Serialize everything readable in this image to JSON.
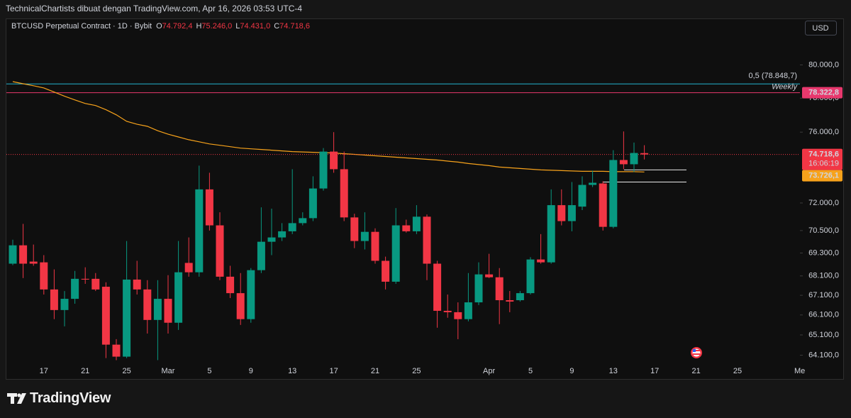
{
  "header": {
    "caption": "TechnicalChartists dibuat dengan TradingView.com, Apr 16, 2026 03:53 UTC-4",
    "brand": "TradingView"
  },
  "chart_data": {
    "type": "candlestick",
    "title": "BTCUSD Perpetual Contract · 1D · Bybit",
    "ohlc_legend": [
      {
        "prefix": "O",
        "value": "74.792,4"
      },
      {
        "prefix": "H",
        "value": "75.246,0"
      },
      {
        "prefix": "L",
        "value": "74.431,0"
      },
      {
        "prefix": "C",
        "value": "74.718,6"
      }
    ],
    "currency": "USD",
    "categories": [
      null,
      null,
      null,
      "17",
      null,
      null,
      null,
      "21",
      null,
      null,
      null,
      "25",
      null,
      null,
      null,
      "Mar",
      null,
      null,
      null,
      "5",
      null,
      null,
      null,
      "9",
      null,
      null,
      null,
      "13",
      null,
      null,
      null,
      "17",
      null,
      null,
      null,
      "21",
      null,
      null,
      null,
      "25",
      null,
      null,
      null,
      null,
      null,
      null,
      "Apr",
      null,
      null,
      null,
      "5",
      null,
      null,
      null,
      "9",
      null,
      null,
      null,
      "13",
      null,
      null,
      null,
      "17",
      null,
      null,
      null,
      "21",
      null,
      null,
      null,
      "25",
      null,
      null,
      null,
      null,
      null,
      "Me"
    ],
    "open": [
      68740,
      69710,
      68850,
      68810,
      67400,
      66350,
      66920,
      67950,
      67950,
      67540,
      64620,
      64030,
      67910,
      67400,
      65850,
      66920,
      65710,
      68780,
      68290,
      72750,
      70780,
      68060,
      67210,
      65890,
      68400,
      69900,
      70130,
      70460,
      70900,
      71170,
      72800,
      74880,
      73880,
      71210,
      69940,
      70430,
      68890,
      67800,
      70780,
      70460,
      71250,
      68740,
      66310,
      66240,
      65890,
      66740,
      68180,
      68030,
      66850,
      66850,
      67210,
      68960,
      68810,
      71880,
      71010,
      71800,
      73000,
      73080,
      70700,
      74400,
      74160,
      74792.4,
      null,
      null,
      null,
      null,
      null,
      null,
      null,
      null,
      null,
      null,
      null,
      null,
      null,
      null,
      null
    ],
    "high": [
      70010,
      70860,
      69750,
      69190,
      68440,
      67320,
      68360,
      68550,
      68250,
      67770,
      64890,
      69940,
      68890,
      67880,
      67880,
      68140,
      69940,
      70130,
      74080,
      73680,
      71490,
      68630,
      68250,
      68510,
      71760,
      71690,
      70900,
      73880,
      71490,
      73480,
      75080,
      76000,
      74880,
      71410,
      71490,
      70620,
      69110,
      71720,
      71090,
      71880,
      71370,
      68890,
      67140,
      66740,
      68250,
      68810,
      69260,
      68510,
      67320,
      67320,
      69080,
      70310,
      72750,
      72750,
      73160,
      73480,
      73800,
      73200,
      74960,
      76040,
      75400,
      75246,
      null,
      null,
      null,
      null,
      null,
      null,
      null,
      null,
      null,
      null,
      null,
      null,
      null,
      null,
      null
    ],
    "low": [
      68660,
      67990,
      68630,
      67140,
      65890,
      65530,
      66670,
      67690,
      67320,
      63960,
      63860,
      63960,
      67140,
      65170,
      63860,
      65170,
      65350,
      68060,
      68060,
      70500,
      67880,
      66960,
      65600,
      65710,
      68250,
      69190,
      69940,
      70310,
      70780,
      71010,
      72680,
      73680,
      71010,
      69560,
      69490,
      68740,
      67400,
      67690,
      70390,
      70310,
      67880,
      65460,
      65960,
      64890,
      65780,
      66600,
      67990,
      65640,
      66240,
      66780,
      67140,
      68740,
      68740,
      70780,
      70460,
      71610,
      72880,
      70500,
      70620,
      73880,
      73720,
      74431,
      null,
      null,
      null,
      null,
      null,
      null,
      null,
      null,
      null,
      null,
      null,
      null,
      null,
      null,
      null
    ],
    "close": [
      69710,
      68740,
      68740,
      67400,
      66350,
      66920,
      67950,
      67910,
      67400,
      64620,
      64030,
      67910,
      67400,
      65850,
      66920,
      65710,
      68290,
      68290,
      72750,
      70780,
      68060,
      67210,
      65890,
      68400,
      69900,
      70130,
      70460,
      70900,
      71170,
      72800,
      74880,
      73880,
      71210,
      69940,
      70430,
      68890,
      67800,
      70780,
      70460,
      71250,
      68740,
      66310,
      66240,
      65890,
      66740,
      68180,
      68030,
      66850,
      66780,
      67210,
      68960,
      68810,
      71880,
      71010,
      71880,
      73000,
      73120,
      70700,
      74400,
      74160,
      74800,
      74718.6,
      null,
      null,
      null,
      null,
      null,
      null,
      null,
      null,
      null,
      null,
      null,
      null,
      null,
      null,
      null
    ],
    "up_color": "#089981",
    "down_color": "#f23645",
    "last_price_label": "74.718,6",
    "countdown": "16:06:19",
    "moving_average": {
      "color": "#f7a21b",
      "price_label": "73.726,1",
      "values": [
        78990,
        78860,
        78740,
        78610,
        78360,
        78110,
        77890,
        77680,
        77560,
        77310,
        77010,
        76630,
        76460,
        76340,
        76080,
        75880,
        75720,
        75560,
        75440,
        75320,
        75240,
        75160,
        75080,
        75040,
        75000,
        74960,
        74920,
        74880,
        74860,
        74840,
        74820,
        74800,
        74760,
        74720,
        74680,
        74640,
        74600,
        74560,
        74520,
        74480,
        74440,
        74400,
        74340,
        74280,
        74200,
        74140,
        74080,
        74000,
        73960,
        73920,
        73880,
        73840,
        73820,
        73800,
        73780,
        73760,
        73760,
        73760,
        73740,
        73740,
        73740,
        73726.1,
        null,
        null,
        null,
        null,
        null,
        null,
        null,
        null,
        null,
        null,
        null,
        null,
        null,
        null,
        null
      ]
    },
    "levels": [
      {
        "label": "0,5 (78.848,7)",
        "value": 78848.7,
        "color": "#22b3cf"
      },
      {
        "label": "Weekly",
        "value": 78322.8,
        "price_label": "78.322,8",
        "color": "#e8386d"
      }
    ],
    "drawn_levels": [
      73840,
      73160
    ],
    "log_scale": true,
    "grid": false,
    "ylim": [
      63600,
      82800
    ],
    "yticks": [
      {
        "value": 80000,
        "label": "80.000,0"
      },
      {
        "value": 78000,
        "label": "78.000,0"
      },
      {
        "value": 76000,
        "label": "76.000,0"
      },
      {
        "value": 72000,
        "label": "72.000,0"
      },
      {
        "value": 70500,
        "label": "70.500,0"
      },
      {
        "value": 69300,
        "label": "69.300,0"
      },
      {
        "value": 68100,
        "label": "68.100,0"
      },
      {
        "value": 67100,
        "label": "67.100,0"
      },
      {
        "value": 66100,
        "label": "66.100,0"
      },
      {
        "value": 65100,
        "label": "65.100,0"
      },
      {
        "value": 64100,
        "label": "64.100,0"
      }
    ]
  }
}
